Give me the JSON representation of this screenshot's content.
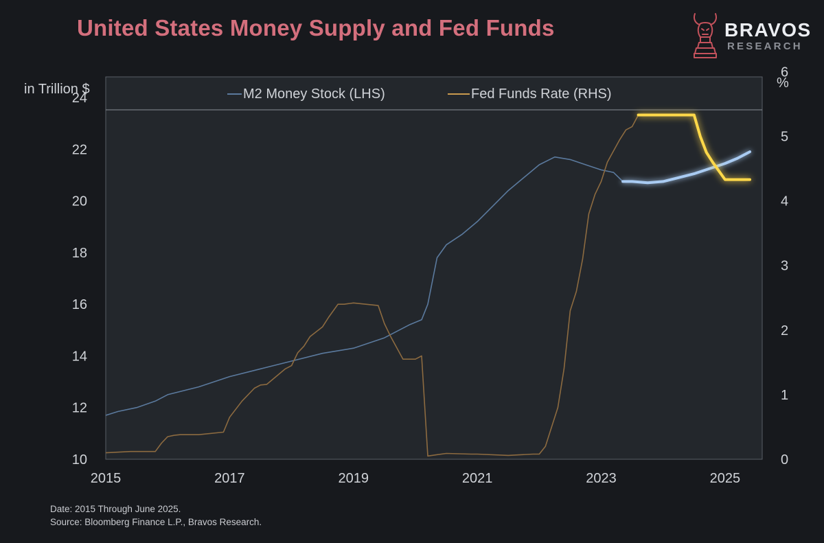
{
  "title": "United States Money Supply and Fed Funds",
  "logo": {
    "brand": "BRAVOS",
    "sub": "RESEARCH"
  },
  "footnotes": {
    "date": "Date: 2015 Through June 2025.",
    "source": "Source: Bloomberg Finance L.P., Bravos Research."
  },
  "colors": {
    "background": "#17191d",
    "plot_background": "#23272c",
    "title": "#d46f7d",
    "m2": "#5b7a9e",
    "m2_highlight": "#a9cbf2",
    "fed": "#8d6b40",
    "fed_highlight": "#ffd84a"
  },
  "chart_data": {
    "type": "line",
    "title": "United States Money Supply and Fed Funds",
    "left_axis_label": "in Trillion $",
    "right_axis_label": "%",
    "x_ticks": [
      "2015",
      "2017",
      "2019",
      "2021",
      "2023",
      "2025"
    ],
    "x_tick_values": [
      2015,
      2017,
      2019,
      2021,
      2023,
      2025
    ],
    "xlim": [
      2015,
      2025.6
    ],
    "ylim_left": [
      10,
      24.8
    ],
    "ylim_right": [
      0,
      5.92
    ],
    "y_ticks_left": [
      "10",
      "12",
      "14",
      "16",
      "18",
      "20",
      "22",
      "24"
    ],
    "y_tick_values_left": [
      10,
      12,
      14,
      16,
      18,
      20,
      22,
      24
    ],
    "y_ticks_right": [
      "0",
      "1",
      "2",
      "3",
      "4",
      "5",
      "6"
    ],
    "y_tick_values_right": [
      0,
      1,
      2,
      3,
      4,
      5,
      6
    ],
    "highlight_from": 2023.35,
    "legend": [
      {
        "name": "M2 Money Stock (LHS)",
        "color": "#5b7a9e"
      },
      {
        "name": "Fed Funds Rate (RHS)",
        "color": "#c99a4e"
      }
    ],
    "series": [
      {
        "name": "M2 Money Stock (LHS)",
        "axis": "left",
        "x": [
          2015.0,
          2015.2,
          2015.5,
          2015.8,
          2016.0,
          2016.5,
          2017.0,
          2017.5,
          2018.0,
          2018.5,
          2019.0,
          2019.5,
          2019.9,
          2020.1,
          2020.2,
          2020.35,
          2020.5,
          2020.75,
          2021.0,
          2021.25,
          2021.5,
          2021.75,
          2022.0,
          2022.25,
          2022.5,
          2022.75,
          2023.0,
          2023.2,
          2023.35,
          2023.5,
          2023.75,
          2024.0,
          2024.25,
          2024.5,
          2024.75,
          2025.0,
          2025.2,
          2025.4
        ],
        "values": [
          11.7,
          11.85,
          12.0,
          12.25,
          12.5,
          12.8,
          13.2,
          13.5,
          13.8,
          14.1,
          14.3,
          14.7,
          15.2,
          15.4,
          16.0,
          17.8,
          18.3,
          18.7,
          19.2,
          19.8,
          20.4,
          20.9,
          21.4,
          21.7,
          21.6,
          21.4,
          21.2,
          21.1,
          20.75,
          20.75,
          20.7,
          20.75,
          20.9,
          21.05,
          21.25,
          21.45,
          21.65,
          21.9
        ]
      },
      {
        "name": "Fed Funds Rate (RHS)",
        "axis": "right",
        "x": [
          2015.0,
          2015.4,
          2015.8,
          2015.9,
          2016.0,
          2016.1,
          2016.2,
          2016.5,
          2016.9,
          2017.0,
          2017.2,
          2017.4,
          2017.5,
          2017.6,
          2017.9,
          2018.0,
          2018.1,
          2018.2,
          2018.3,
          2018.5,
          2018.6,
          2018.75,
          2018.85,
          2019.0,
          2019.4,
          2019.5,
          2019.6,
          2019.8,
          2020.0,
          2020.1,
          2020.2,
          2020.5,
          2020.9,
          2021.0,
          2021.5,
          2021.9,
          2022.0,
          2022.1,
          2022.3,
          2022.4,
          2022.5,
          2022.6,
          2022.7,
          2022.8,
          2022.9,
          2023.0,
          2023.1,
          2023.3,
          2023.4,
          2023.5,
          2023.6,
          2024.0,
          2024.5,
          2024.6,
          2024.7,
          2024.8,
          2025.0,
          2025.4
        ],
        "values": [
          0.1,
          0.12,
          0.12,
          0.25,
          0.35,
          0.37,
          0.38,
          0.38,
          0.42,
          0.65,
          0.9,
          1.1,
          1.15,
          1.16,
          1.4,
          1.45,
          1.65,
          1.75,
          1.9,
          2.05,
          2.2,
          2.4,
          2.4,
          2.42,
          2.38,
          2.1,
          1.9,
          1.55,
          1.55,
          1.6,
          0.05,
          0.09,
          0.08,
          0.08,
          0.06,
          0.08,
          0.08,
          0.2,
          0.8,
          1.4,
          2.3,
          2.6,
          3.1,
          3.8,
          4.1,
          4.3,
          4.6,
          4.95,
          5.1,
          5.15,
          5.33,
          5.33,
          5.33,
          5.0,
          4.75,
          4.6,
          4.33,
          4.33
        ]
      }
    ]
  }
}
